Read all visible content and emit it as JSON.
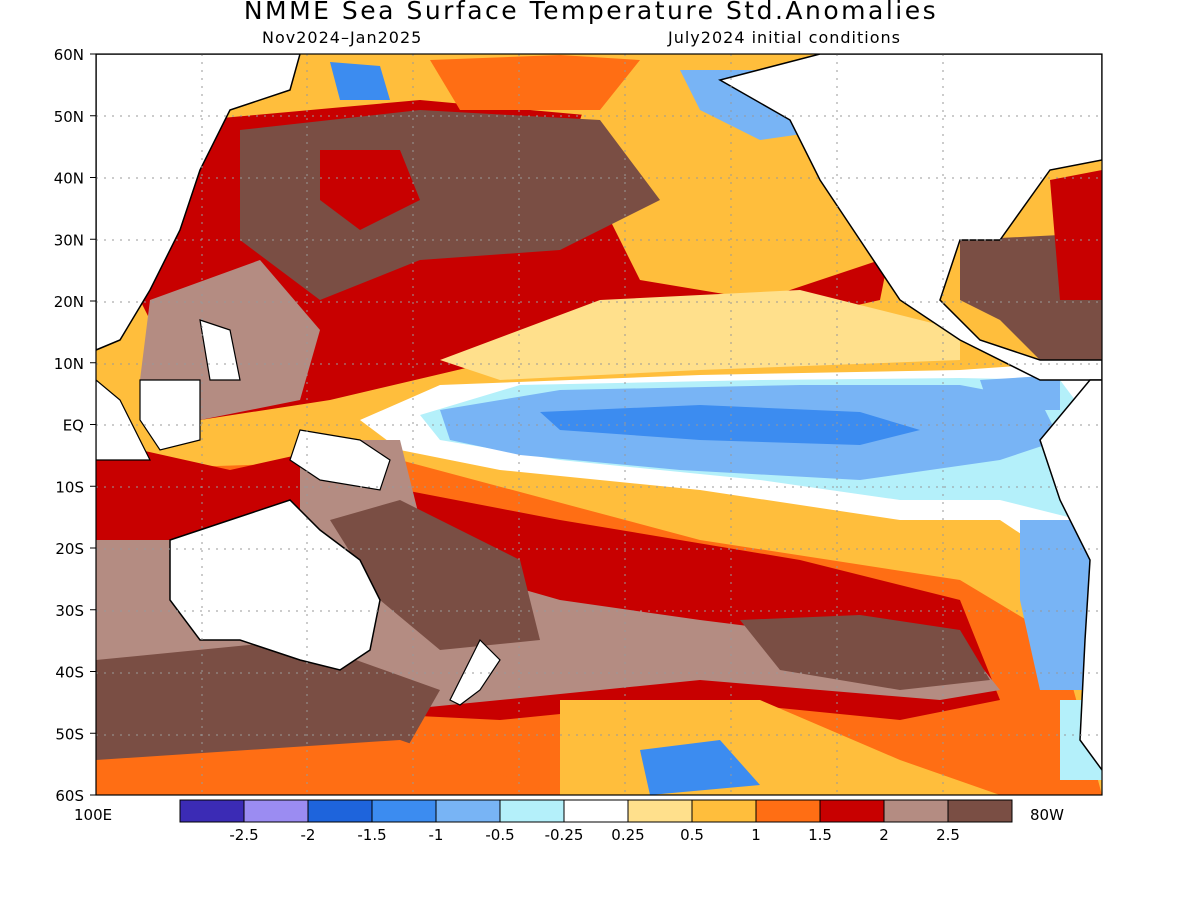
{
  "title": "NMME Sea Surface Temperature Std.Anomalies",
  "subtitle_left": "Nov2024–Jan2025",
  "subtitle_right": "July2024 initial conditions",
  "lat_labels": [
    "60N",
    "50N",
    "40N",
    "30N",
    "20N",
    "10N",
    "EQ",
    "10S",
    "20S",
    "30S",
    "40S",
    "50S",
    "60S"
  ],
  "lon_labels": {
    "left": "100E",
    "right": "80W"
  },
  "colorbar": {
    "colors": [
      "#3b2bb5",
      "#9b8cf2",
      "#1e64dc",
      "#3c8cf0",
      "#78b4f5",
      "#b4f0fa",
      "#ffffff",
      "#ffe08c",
      "#ffbe3c",
      "#ff6e14",
      "#c80000",
      "#b48c82",
      "#7a4e44"
    ],
    "ticks": [
      "-2.5",
      "-2",
      "-1.5",
      "-1",
      "-0.5",
      "-0.25",
      "0.25",
      "0.5",
      "1",
      "1.5",
      "2",
      "2.5"
    ]
  }
}
